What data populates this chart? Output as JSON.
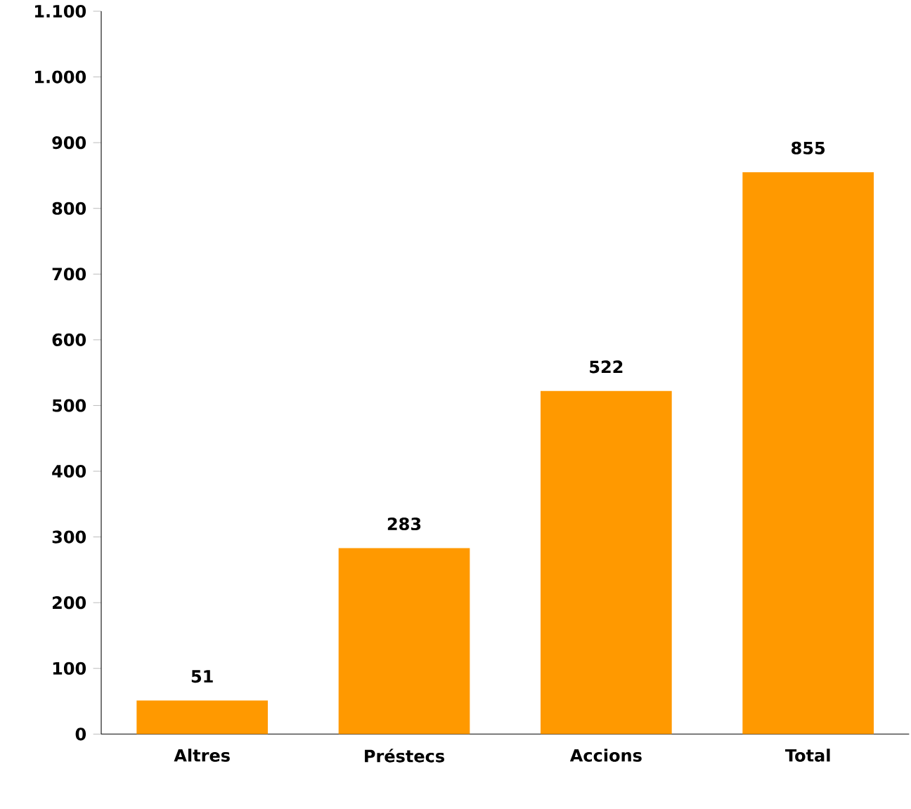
{
  "chart_data": {
    "type": "bar",
    "categories": [
      "Altres",
      "Préstecs",
      "Accions",
      "Total"
    ],
    "values": [
      51,
      283,
      522,
      855
    ],
    "color": "#ff9900",
    "data_labels": true,
    "ylim": [
      0,
      1100
    ],
    "yticks": [
      0,
      100,
      200,
      300,
      400,
      500,
      600,
      700,
      800,
      900,
      {
        "value": 1000,
        "label": "1.000"
      },
      {
        "value": 1100,
        "label": "1.100"
      }
    ],
    "grid": false
  }
}
